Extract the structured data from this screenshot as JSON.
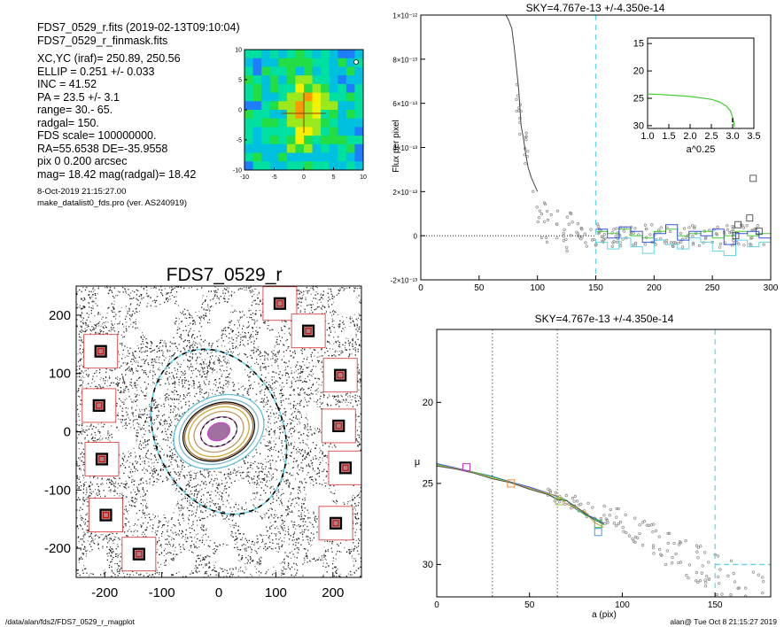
{
  "info": {
    "lines_top": [
      "FDS7_0529_r.fits  (2019-02-13T09:10:04)",
      "FDS7_0529_r_finmask.fits"
    ],
    "lines_main": [
      "XC,YC (iraf)=   250.89, 250.56",
      "ELLIP = 0.251 +/- 0.033",
      "INC   = 41.52",
      "PA    =  23.5 +/-   3.1",
      "range=   30.-   65.",
      "radgal=  150.",
      "FDS scale=  100000000.",
      "RA=55.6538   DE=-35.9558",
      "pix 0 0.200 arcsec",
      "mag=  18.42  mag(radgal)=  18.42"
    ],
    "lines_small": [
      "8-Oct-2019 21:15:27.00",
      "make_datalist0_fds.pro (ver. AS240919)"
    ]
  },
  "footer": {
    "left": "/data/alan/fds2/FDS7_0529_r_magplot",
    "right": "alan@  Tue Oct  8 21:15:27 2019"
  },
  "colors": {
    "cyan": "#5fd3e6",
    "green": "#44cc33",
    "blue": "#3355dd",
    "gray": "#777777",
    "red": "#dd4444"
  },
  "chart_data": [
    {
      "type": "heatmap",
      "x_ticks": [
        "-10",
        "-5",
        "0",
        "5",
        "10"
      ],
      "y_ticks": [
        "-10",
        "-5",
        "0",
        "5",
        "10"
      ],
      "xlim": [
        -10,
        10
      ],
      "ylim": [
        -10,
        10
      ],
      "grid": false
    },
    {
      "type": "scatter",
      "title": "FDS7_0529_r",
      "x_ticks": [
        "-200",
        "-100",
        "0",
        "100",
        "200"
      ],
      "y_ticks": [
        "-200",
        "-100",
        "0",
        "100",
        "200"
      ],
      "xlim": [
        -250,
        250
      ],
      "ylim": [
        -250,
        250
      ],
      "ellipse": {
        "cx": 0,
        "cy": 0,
        "a": 150,
        "b": 112,
        "pa_deg": 23.5
      },
      "isophote_a": [
        20,
        33,
        45,
        55,
        62,
        72,
        82
      ],
      "masked_stars": [
        [
          -207,
          138
        ],
        [
          -210,
          45
        ],
        [
          -205,
          -47
        ],
        [
          -198,
          -143
        ],
        [
          -140,
          -210
        ],
        [
          107,
          220
        ],
        [
          157,
          173
        ],
        [
          213,
          97
        ],
        [
          210,
          10
        ],
        [
          222,
          -62
        ],
        [
          205,
          -157
        ]
      ]
    },
    {
      "type": "line",
      "title": "SKY=4.767e-13 +/-4.350e-14",
      "ylabel": "Flux per pixel",
      "x_ticks": [
        "0",
        "50",
        "100",
        "150",
        "200",
        "250",
        "300"
      ],
      "y_ticks": [
        "-2×10⁻¹³",
        "0",
        "2×10⁻¹³",
        "4×10⁻¹³",
        "6×10⁻¹³",
        "8×10⁻¹³",
        "1×10⁻¹²"
      ],
      "xlim": [
        0,
        300
      ],
      "ylim": [
        -2e-13,
        1e-12
      ],
      "vline_x": 150,
      "profile_x": [
        73,
        75,
        78,
        80,
        82,
        84,
        85,
        86,
        88,
        90,
        92,
        95,
        100
      ],
      "profile_y": [
        1e-12,
        9.8e-13,
        9.4e-13,
        8.6e-13,
        7.6e-13,
        6.6e-13,
        5.8e-13,
        5e-13,
        4.4e-13,
        3.7e-13,
        3.1e-13,
        2.6e-13,
        2e-13
      ],
      "step_x": [
        150,
        160,
        170,
        180,
        190,
        200,
        210,
        220,
        230,
        240,
        250,
        260,
        270,
        280,
        290,
        300
      ],
      "step_blue": [
        3e-14,
        -1e-14,
        4e-14,
        2e-14,
        -3e-14,
        1e-14,
        5e-14,
        -2e-14,
        2e-14,
        0,
        3e-14,
        -4e-14,
        1e-14,
        2e-14,
        -1e-14
      ],
      "step_green": [
        2e-14,
        1e-14,
        3e-14,
        0,
        -1e-14,
        2e-14,
        3e-14,
        0,
        1e-14,
        2e-14,
        -1e-14,
        0,
        2e-14,
        0,
        1e-14
      ],
      "step_cyan": [
        -3e-14,
        -6e-14,
        -1e-14,
        -5e-14,
        -8e-14,
        -2e-14,
        -4e-14,
        -6e-14,
        -1e-14,
        -3e-14,
        -7e-14,
        -9e-14,
        -2e-14,
        -5e-14,
        -3e-14
      ],
      "squares": [
        [
          285,
          2.6e-13
        ],
        [
          272,
          5e-14
        ],
        [
          282,
          8e-14
        ],
        [
          270,
          0
        ],
        [
          290,
          2e-14
        ]
      ],
      "inset": {
        "xlabel": "a^0.25",
        "x_ticks": [
          "1.0",
          "1.5",
          "2.0",
          "2.5",
          "3.0",
          "3.5"
        ],
        "y_ticks": [
          "15",
          "20",
          "25",
          "30"
        ],
        "xlim": [
          1.0,
          3.5
        ],
        "ylim": [
          30.5,
          14
        ],
        "curve_x": [
          1.0,
          1.3,
          1.6,
          1.9,
          2.2,
          2.5,
          2.7,
          2.85,
          2.95,
          3.0,
          3.05
        ],
        "curve_y": [
          24.2,
          24.3,
          24.45,
          24.6,
          24.85,
          25.2,
          25.7,
          26.4,
          27.3,
          28.5,
          30.2
        ]
      }
    },
    {
      "type": "line",
      "title": "SKY=4.767e-13 +/-4.350e-14",
      "xlabel": "a (pix)",
      "ylabel": "μ",
      "x_ticks": [
        "0",
        "50",
        "100",
        "150"
      ],
      "y_ticks": [
        "20",
        "25",
        "30"
      ],
      "xlim": [
        0,
        180
      ],
      "ylim": [
        32,
        15.5
      ],
      "vlines_dotted": [
        30,
        65
      ],
      "vline_x": 150,
      "profile_x": [
        0,
        10,
        20,
        30,
        40,
        50,
        60,
        65,
        70,
        75,
        80,
        85,
        90
      ],
      "profile_y": [
        23.8,
        24.05,
        24.3,
        24.6,
        24.9,
        25.25,
        25.6,
        25.85,
        26.15,
        26.5,
        26.85,
        27.2,
        27.5
      ],
      "squares": [
        [
          16,
          24.0,
          "#cc33cc"
        ],
        [
          40,
          25.0,
          "#ee8833"
        ],
        [
          66,
          26.1,
          "#99cc33"
        ],
        [
          87,
          27.5,
          "#44bb44"
        ],
        [
          87,
          28.0,
          "#4499ee"
        ]
      ],
      "sky_level": 30.0
    }
  ]
}
